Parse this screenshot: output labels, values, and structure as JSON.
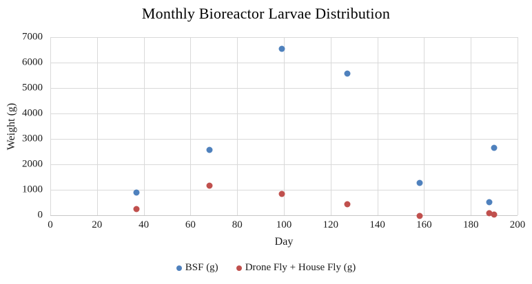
{
  "chart_data": {
    "type": "scatter",
    "title": "Monthly Bioreactor Larvae Distribution",
    "xlabel": "Day",
    "ylabel": "Weight (g)",
    "xlim": [
      0,
      200
    ],
    "ylim": [
      0,
      7000
    ],
    "xticks": [
      0,
      20,
      40,
      60,
      80,
      100,
      120,
      140,
      160,
      180,
      200
    ],
    "yticks": [
      0,
      1000,
      2000,
      3000,
      4000,
      5000,
      6000,
      7000
    ],
    "grid": true,
    "legend_position": "bottom-center",
    "series": [
      {
        "name": "BSF (g)",
        "color": "#4F81BD",
        "points": [
          [
            37,
            900
          ],
          [
            68,
            2580
          ],
          [
            99,
            6550
          ],
          [
            127,
            5570
          ],
          [
            158,
            1260
          ],
          [
            188,
            510
          ],
          [
            190,
            2650
          ]
        ]
      },
      {
        "name": "Drone Fly + House Fly (g)",
        "color": "#C0504D",
        "points": [
          [
            37,
            250
          ],
          [
            68,
            1150
          ],
          [
            99,
            830
          ],
          [
            127,
            440
          ],
          [
            158,
            -30
          ],
          [
            188,
            90
          ],
          [
            190,
            30
          ]
        ]
      }
    ]
  },
  "colors": {
    "gridline": "#d9d9d9",
    "axisline": "#c6c6c6",
    "text": "#1a1a1a"
  }
}
